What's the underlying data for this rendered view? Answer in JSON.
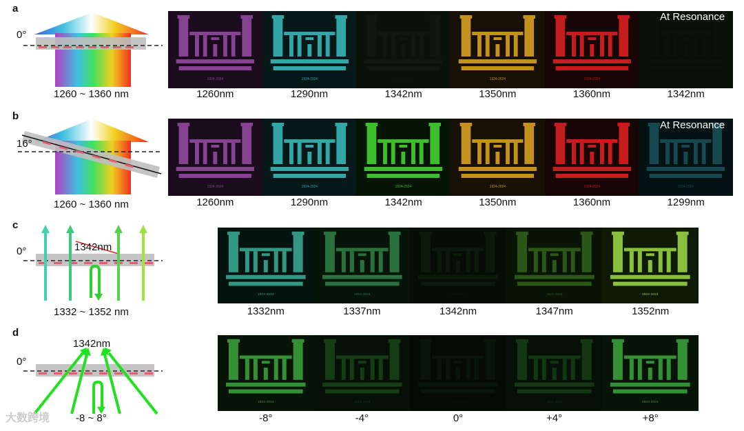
{
  "figure": {
    "rows": [
      {
        "letter": "a",
        "angle": "0°",
        "range": "1260 ~ 1360 nm",
        "resonance": "At Resonance",
        "labels": [
          "1260nm",
          "1290nm",
          "1342nm",
          "1350nm",
          "1360nm",
          "1342nm"
        ],
        "panel_colors": [
          "#9b4ba8",
          "#3bbfc0",
          "#1a2a1a",
          "#d8a020",
          "#d82020",
          "#132013"
        ],
        "panel_bg": [
          "#1a0c1c",
          "#061818",
          "#0a120a",
          "#181005",
          "#180505",
          "#081008"
        ],
        "panel_alpha": [
          0.85,
          0.85,
          0.25,
          0.9,
          0.9,
          0.2
        ]
      },
      {
        "letter": "b",
        "angle": "16°",
        "range": "1260 ~ 1360 nm",
        "resonance": "At Resonance",
        "labels": [
          "1260nm",
          "1290nm",
          "1342nm",
          "1350nm",
          "1360nm",
          "1299nm"
        ],
        "panel_colors": [
          "#9b4ba8",
          "#3bbfc0",
          "#40c830",
          "#d8a020",
          "#d82020",
          "#2a8a98"
        ],
        "panel_bg": [
          "#1a0c1c",
          "#061818",
          "#071507",
          "#181005",
          "#180505",
          "#051214"
        ],
        "panel_alpha": [
          0.85,
          0.85,
          0.95,
          0.9,
          0.9,
          0.45
        ]
      },
      {
        "letter": "c",
        "angle": "0°",
        "range": "1332 ~ 1352 nm",
        "center": "1342nm",
        "labels": [
          "1332nm",
          "1337nm",
          "1342nm",
          "1347nm",
          "1352nm"
        ],
        "panel_colors": [
          "#40b8a0",
          "#40b060",
          "#2a5a2a",
          "#58a830",
          "#90c840"
        ],
        "panel_bg": [
          "#06140f",
          "#07140a",
          "#060c06",
          "#0a1406",
          "#0f1a06"
        ],
        "panel_alpha": [
          0.8,
          0.6,
          0.18,
          0.45,
          0.95
        ]
      },
      {
        "letter": "d",
        "angle": "0°",
        "center": "1342nm",
        "range": "-8 ~ 8°",
        "labels": [
          "-8°",
          "-4°",
          "0°",
          "+4°",
          "+8°"
        ],
        "panel_colors": [
          "#40b040",
          "#309030",
          "#205520",
          "#309030",
          "#40b040"
        ],
        "panel_bg": [
          "#071407",
          "#061006",
          "#050a05",
          "#061006",
          "#071407"
        ],
        "panel_alpha": [
          0.8,
          0.35,
          0.15,
          0.3,
          0.8
        ]
      }
    ],
    "building_caption": "1924-2024",
    "watermark": "大数跨境"
  }
}
